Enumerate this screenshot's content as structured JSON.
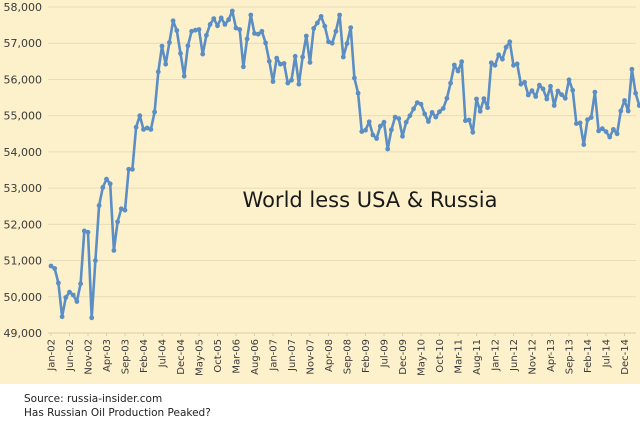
{
  "chart_data": {
    "type": "line",
    "title": "World less USA & Russia",
    "xlabel": "",
    "ylabel": "",
    "ylim": [
      49000,
      58000
    ],
    "yticks": [
      49000,
      50000,
      51000,
      52000,
      53000,
      54000,
      55000,
      56000,
      57000,
      58000
    ],
    "ytick_labels": [
      "49,000",
      "50,000",
      "51,000",
      "52,000",
      "53,000",
      "54,000",
      "55,000",
      "56,000",
      "57,000",
      "58,000"
    ],
    "grid": true,
    "legend": "none",
    "x_start": "Jan-02",
    "tick_labels": [
      "Jan-02",
      "Jun-02",
      "Nov-02",
      "Apr-03",
      "Sep-03",
      "Feb-04",
      "Jul-04",
      "Dec-04",
      "May-05",
      "Oct-05",
      "Mar-06",
      "Aug-06",
      "Jan-07",
      "Jun-07",
      "Nov-07",
      "Apr-08",
      "Sep-08",
      "Feb-09",
      "Jul-09",
      "Dec-09",
      "May-10",
      "Oct-10",
      "Mar-11",
      "Aug-11",
      "Jan-12",
      "Jun-12",
      "Nov-12",
      "Apr-13",
      "Sep-13",
      "Feb-14",
      "Jul-14",
      "Dec-14"
    ],
    "tick_every_months": 5,
    "series": [
      {
        "name": "World less USA & Russia",
        "color": "#5b8ec4",
        "values": [
          50850,
          50780,
          50380,
          49450,
          49980,
          50130,
          50050,
          49870,
          50360,
          51820,
          51780,
          49420,
          51000,
          52520,
          53020,
          53250,
          53120,
          51280,
          52070,
          52430,
          52390,
          53520,
          53520,
          54680,
          55000,
          54620,
          54660,
          54620,
          55100,
          56210,
          56920,
          56420,
          57020,
          57620,
          57350,
          56720,
          56090,
          56930,
          57330,
          57360,
          57380,
          56700,
          57220,
          57520,
          57680,
          57480,
          57700,
          57520,
          57650,
          57890,
          57420,
          57380,
          56350,
          57120,
          57780,
          57270,
          57250,
          57330,
          57010,
          56500,
          55940,
          56590,
          56420,
          56440,
          55900,
          55980,
          56640,
          55870,
          56620,
          57200,
          56470,
          57410,
          57560,
          57740,
          57470,
          57040,
          57000,
          57330,
          57780,
          56620,
          56990,
          57430,
          56040,
          55620,
          54560,
          54600,
          54830,
          54470,
          54370,
          54710,
          54820,
          54080,
          54610,
          54960,
          54920,
          54430,
          54820,
          55000,
          55190,
          55360,
          55320,
          55050,
          54840,
          55090,
          54960,
          55110,
          55200,
          55480,
          55900,
          56400,
          56230,
          56490,
          54860,
          54880,
          54540,
          55460,
          55120,
          55470,
          55220,
          56460,
          56390,
          56680,
          56560,
          56890,
          57040,
          56390,
          56430,
          55870,
          55920,
          55570,
          55690,
          55530,
          55840,
          55740,
          55460,
          55810,
          55280,
          55680,
          55580,
          55480,
          55990,
          55700,
          54780,
          54800,
          54200,
          54890,
          54950,
          55650,
          54580,
          54640,
          54560,
          54410,
          54620,
          54500,
          55130,
          55420,
          55130,
          56280,
          55620,
          55280
        ]
      }
    ]
  },
  "footer": {
    "source": "Source: russia-insider.com",
    "caption": "Has Russian Oil Production Peaked?"
  },
  "colors": {
    "background": "#fdf1cc",
    "gridline": "#e6dcb9",
    "line": "#5b8ec4"
  }
}
